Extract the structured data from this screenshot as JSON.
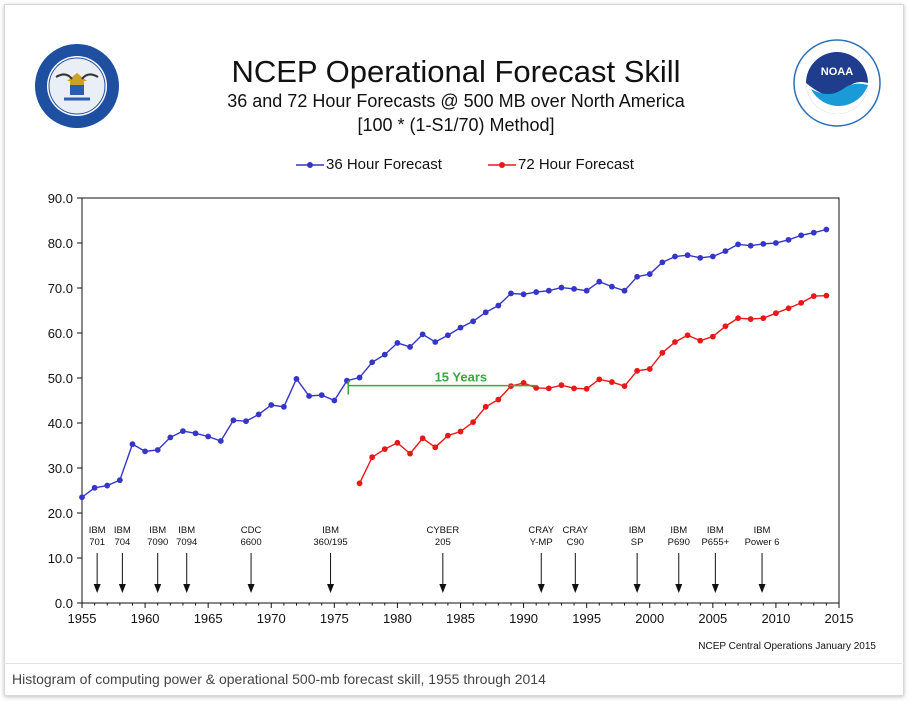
{
  "figure": {
    "title": "NCEP Operational Forecast Skill",
    "subtitle": "36 and 72 Hour Forecasts @ 500 MB over North America",
    "method": "[100 * (1-S1/70) Method]",
    "footer": "NCEP Central Operations January 2015",
    "caption": "Histogram of computing power & operational 500-mb forecast skill, 1955 through 2014",
    "annotation": "15 Years",
    "logos": {
      "left": "DEPARTMENT OF COMMERCE • UNITED STATES OF AMERICA",
      "right": "NATIONAL OCEANIC AND ATMOSPHERIC ADMINISTRATION • U.S. DEPARTMENT OF COMMERCE",
      "right_mark": "NOAA"
    }
  },
  "colors": {
    "series36": "#3535c8",
    "series72": "#e81818",
    "annotation": "#3aa83a",
    "axis": "#111111"
  },
  "chart_data": {
    "type": "line",
    "title": "NCEP Operational Forecast Skill",
    "xlim": [
      1955,
      2015
    ],
    "ylim": [
      0,
      90
    ],
    "xticks": [
      1955,
      1960,
      1965,
      1970,
      1975,
      1980,
      1985,
      1990,
      1995,
      2000,
      2005,
      2010,
      2015
    ],
    "yticks": [
      "0.0",
      "10.0",
      "20.0",
      "30.0",
      "40.0",
      "50.0",
      "60.0",
      "70.0",
      "80.0",
      "90.0"
    ],
    "legend_position": "top-center",
    "grid": false,
    "series": [
      {
        "name": "36 Hour Forecast",
        "x": [
          1955,
          1956,
          1957,
          1958,
          1959,
          1960,
          1961,
          1962,
          1963,
          1964,
          1965,
          1966,
          1967,
          1968,
          1969,
          1970,
          1971,
          1972,
          1973,
          1974,
          1975,
          1976,
          1977,
          1978,
          1979,
          1980,
          1981,
          1982,
          1983,
          1984,
          1985,
          1986,
          1987,
          1988,
          1989,
          1990,
          1991,
          1992,
          1993,
          1994,
          1995,
          1996,
          1997,
          1998,
          1999,
          2000,
          2001,
          2002,
          2003,
          2004,
          2005,
          2006,
          2007,
          2008,
          2009,
          2010,
          2011,
          2012,
          2013,
          2014
        ],
        "values": [
          23.5,
          25.6,
          26.1,
          27.3,
          35.3,
          33.7,
          34.0,
          36.8,
          38.2,
          37.7,
          37.0,
          36.0,
          40.6,
          40.4,
          41.9,
          44.0,
          43.6,
          49.8,
          46.0,
          46.2,
          45.0,
          49.4,
          50.1,
          53.5,
          55.2,
          57.8,
          56.9,
          59.7,
          58.0,
          59.5,
          61.2,
          62.6,
          64.6,
          66.1,
          68.8,
          68.6,
          69.1,
          69.4,
          70.1,
          69.8,
          69.4,
          71.4,
          70.3,
          69.4,
          72.5,
          73.1,
          75.7,
          77.0,
          77.3,
          76.7,
          77.0,
          78.2,
          79.7,
          79.4,
          79.8,
          80.0,
          80.7,
          81.7,
          82.3,
          83.0
        ]
      },
      {
        "name": "72 Hour Forecast",
        "x": [
          1977,
          1978,
          1979,
          1980,
          1981,
          1982,
          1983,
          1984,
          1985,
          1986,
          1987,
          1988,
          1989,
          1990,
          1991,
          1992,
          1993,
          1994,
          1995,
          1996,
          1997,
          1998,
          1999,
          2000,
          2001,
          2002,
          2003,
          2004,
          2005,
          2006,
          2007,
          2008,
          2009,
          2010,
          2011,
          2012,
          2013,
          2014
        ],
        "values": [
          26.6,
          32.4,
          34.2,
          35.6,
          33.2,
          36.6,
          34.6,
          37.2,
          38.1,
          40.2,
          43.6,
          45.2,
          48.2,
          48.9,
          47.8,
          47.7,
          48.4,
          47.7,
          47.6,
          49.7,
          49.1,
          48.2,
          51.6,
          52.0,
          55.6,
          58.0,
          59.5,
          58.3,
          59.2,
          61.5,
          63.3,
          63.1,
          63.3,
          64.4,
          65.5,
          66.7,
          68.2,
          68.3
        ]
      }
    ],
    "annotations": [
      {
        "text": "15 Years",
        "x_start": 1976.1,
        "x_end": 1991.1,
        "y": 48.3
      }
    ],
    "computers": [
      {
        "label": [
          "IBM",
          "701"
        ],
        "year": 1956.2
      },
      {
        "label": [
          "IBM",
          "704"
        ],
        "year": 1958.2
      },
      {
        "label": [
          "IBM",
          "7090"
        ],
        "year": 1961.0
      },
      {
        "label": [
          "IBM",
          "7094"
        ],
        "year": 1963.3
      },
      {
        "label": [
          "CDC",
          "6600"
        ],
        "year": 1968.4
      },
      {
        "label": [
          "IBM",
          "360/195"
        ],
        "year": 1974.7
      },
      {
        "label": [
          "CYBER",
          "205"
        ],
        "year": 1983.6
      },
      {
        "label": [
          "CRAY",
          "Y-MP"
        ],
        "year": 1991.4
      },
      {
        "label": [
          "CRAY",
          "C90"
        ],
        "year": 1994.1
      },
      {
        "label": [
          "IBM",
          "SP"
        ],
        "year": 1999.0
      },
      {
        "label": [
          "IBM",
          "P690"
        ],
        "year": 2002.3
      },
      {
        "label": [
          "IBM",
          "P655+"
        ],
        "year": 2005.2
      },
      {
        "label": [
          "IBM",
          "Power 6"
        ],
        "year": 2008.9
      }
    ]
  }
}
